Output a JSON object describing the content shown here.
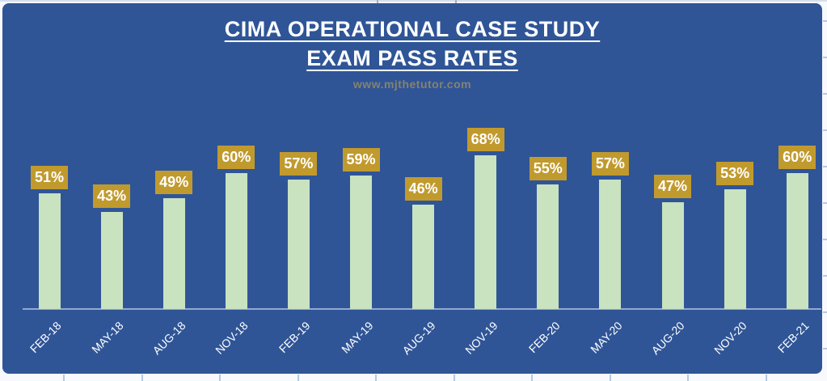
{
  "chart_data": {
    "type": "bar",
    "title_lines": [
      "CIMA OPERATIONAL CASE STUDY",
      "EXAM PASS RATES"
    ],
    "watermark": "www.mjthetutor.com",
    "categories": [
      "FEB-18",
      "MAY-18",
      "AUG-18",
      "NOV-18",
      "FEB-19",
      "MAY-19",
      "AUG-19",
      "NOV-19",
      "FEB-20",
      "MAY-20",
      "AUG-20",
      "NOV-20",
      "FEB-21"
    ],
    "values": [
      51,
      43,
      49,
      60,
      57,
      59,
      46,
      68,
      55,
      57,
      47,
      53,
      60
    ],
    "data_labels": [
      "51%",
      "43%",
      "49%",
      "60%",
      "57%",
      "59%",
      "46%",
      "68%",
      "55%",
      "57%",
      "47%",
      "53%",
      "60%"
    ],
    "xlabel": "",
    "ylabel": "",
    "legend": "none",
    "grid": false,
    "y_axis_labels_visible": false,
    "x_tick_rotation_deg": 45,
    "colors": {
      "background": "#2F5597",
      "bar_fill": "#C9E2C0",
      "data_label_bg": "#C19A2E",
      "data_label_text": "#FFFFFF",
      "title_text": "#FFFFFF",
      "watermark_text": "#858270",
      "axis_line": "#93A9D2",
      "tick_label_text": "#FFFFFF"
    }
  }
}
